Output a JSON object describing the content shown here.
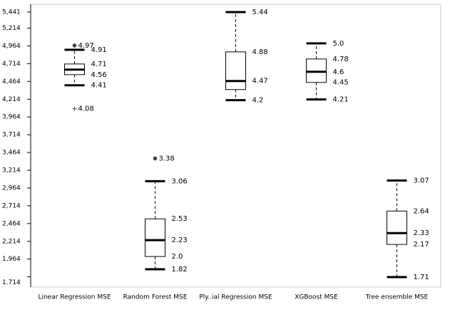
{
  "chart_data": {
    "type": "box",
    "ylim": [
      1.6,
      5.45
    ],
    "yticks": [
      1.714,
      {
        "value": 1.964,
        "label": "1,964"
      },
      {
        "value": 2.214,
        "label": "2,214"
      },
      {
        "value": 2.464,
        "label": "2,464"
      },
      {
        "value": 2.714,
        "label": "2,714"
      },
      {
        "value": 2.964,
        "label": "2,964"
      },
      {
        "value": 3.214,
        "label": "3,214"
      },
      {
        "value": 3.464,
        "label": "3,464"
      },
      {
        "value": 3.714,
        "label": "3,714"
      },
      {
        "value": 3.964,
        "label": "3,964"
      },
      {
        "value": 4.214,
        "label": "4,214"
      },
      {
        "value": 4.464,
        "label": "4,464"
      },
      {
        "value": 4.714,
        "label": "4,714"
      },
      {
        "value": 4.964,
        "label": "4,964"
      },
      {
        "value": 5.214,
        "label": "5,214"
      },
      {
        "value": 5.441,
        "label": "5,441"
      }
    ],
    "color": "#000000",
    "boxes": [
      {
        "category": "Linear Regression MSE",
        "min": 4.41,
        "q1": 4.56,
        "median": 4.63,
        "q3": 4.71,
        "max": 4.91,
        "value_labels": {
          "min": "4.41",
          "q1": "4.56",
          "q3": "4.71",
          "max": "4.91"
        },
        "outliers": [
          {
            "value": 4.97,
            "marker": "dot"
          },
          {
            "value": 4.08,
            "marker": "plus"
          }
        ]
      },
      {
        "category": "Random Forest MSE",
        "min": 1.82,
        "q1": 2.0,
        "median": 2.23,
        "q3": 2.53,
        "max": 3.06,
        "value_labels": {
          "min": "1.82",
          "q1": "2.0",
          "median": "2.23",
          "q3": "2.53",
          "max": "3.06"
        },
        "outliers": [
          {
            "value": 3.38,
            "marker": "dot"
          }
        ]
      },
      {
        "category": "Ply..ial Regression MSE",
        "min": 4.2,
        "q1": 4.35,
        "median": 4.47,
        "q3": 4.88,
        "max": 5.44,
        "value_labels": {
          "min": "4.2",
          "median": "4.47",
          "q3": "4.88",
          "max": "5.44"
        },
        "outliers": []
      },
      {
        "category": "XGBoost MSE",
        "min": 4.21,
        "q1": 4.45,
        "median": 4.6,
        "q3": 4.78,
        "max": 5.0,
        "value_labels": {
          "min": "4.21",
          "q1": "4.45",
          "median": "4.6",
          "q3": "4.78",
          "max": "5.0"
        },
        "outliers": []
      },
      {
        "category": "Tree ensemble MSE",
        "min": 1.71,
        "q1": 2.17,
        "median": 2.33,
        "q3": 2.64,
        "max": 3.07,
        "value_labels": {
          "min": "1.71",
          "q1": "2.17",
          "median": "2.33",
          "q3": "2.64",
          "max": "3.07"
        },
        "outliers": []
      }
    ]
  }
}
